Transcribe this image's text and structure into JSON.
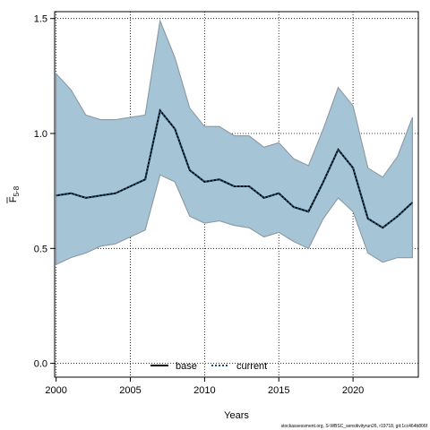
{
  "chart_data": {
    "type": "line",
    "xlabel": "Years",
    "ylabel_main": "F",
    "ylabel_sub": "5-8",
    "xlim": [
      1999.9,
      2024.4
    ],
    "ylim": [
      -0.06,
      1.53
    ],
    "x_ticks": [
      2000,
      2005,
      2010,
      2015,
      2020
    ],
    "y_ticks": [
      0.0,
      0.5,
      1.0,
      1.5
    ],
    "y_tick_labels": [
      "0.0",
      "0.5",
      "1.0",
      "1.5"
    ],
    "grid": true,
    "legend_position": "bottom",
    "x": [
      2000,
      2001,
      2002,
      2003,
      2004,
      2005,
      2006,
      2007,
      2008,
      2009,
      2010,
      2011,
      2012,
      2013,
      2014,
      2015,
      2016,
      2017,
      2018,
      2019,
      2020,
      2021,
      2022,
      2023,
      2024
    ],
    "series": [
      {
        "name": "base",
        "color": "#000000",
        "style": "solid",
        "values": [
          0.73,
          0.74,
          0.72,
          0.73,
          0.74,
          0.77,
          0.8,
          1.1,
          1.02,
          0.84,
          0.79,
          0.8,
          0.77,
          0.77,
          0.72,
          0.74,
          0.68,
          0.66,
          0.79,
          0.93,
          0.85,
          0.63,
          0.59,
          0.64,
          0.7
        ],
        "lower": [
          0.43,
          0.46,
          0.48,
          0.51,
          0.52,
          0.55,
          0.58,
          0.82,
          0.79,
          0.64,
          0.61,
          0.62,
          0.6,
          0.59,
          0.55,
          0.57,
          0.53,
          0.5,
          0.63,
          0.72,
          0.66,
          0.48,
          0.44,
          0.46,
          0.46
        ],
        "upper": [
          1.26,
          1.19,
          1.08,
          1.06,
          1.06,
          1.07,
          1.08,
          1.49,
          1.33,
          1.11,
          1.03,
          1.03,
          0.99,
          0.99,
          0.94,
          0.96,
          0.89,
          0.86,
          1.02,
          1.2,
          1.12,
          0.85,
          0.81,
          0.9,
          1.07
        ]
      },
      {
        "name": "current",
        "color": "#1a5276",
        "style": "dotted",
        "values": [
          0.73,
          0.74,
          0.72,
          0.73,
          0.74,
          0.77,
          0.8,
          1.1,
          1.02,
          0.84,
          0.79,
          0.8,
          0.77,
          0.77,
          0.72,
          0.74,
          0.68,
          0.66,
          0.79,
          0.93,
          0.85,
          0.63,
          0.59,
          0.64,
          0.7
        ],
        "lower": [
          0.43,
          0.46,
          0.48,
          0.51,
          0.52,
          0.55,
          0.58,
          0.82,
          0.79,
          0.64,
          0.61,
          0.62,
          0.6,
          0.59,
          0.55,
          0.57,
          0.53,
          0.5,
          0.63,
          0.72,
          0.66,
          0.48,
          0.44,
          0.46,
          0.46
        ],
        "upper": [
          1.26,
          1.19,
          1.08,
          1.06,
          1.06,
          1.07,
          1.08,
          1.49,
          1.33,
          1.11,
          1.03,
          1.03,
          0.99,
          0.99,
          0.94,
          0.96,
          0.89,
          0.86,
          1.02,
          1.2,
          1.12,
          0.85,
          0.81,
          0.9,
          1.07
        ]
      }
    ],
    "band_fill_color": "#a5c4d6",
    "band_edge_color": "#8c9aa5"
  },
  "footer": "stockassessment.org, S-WBSC_sensitivityrun26, r19718, git:1cc464b806f"
}
